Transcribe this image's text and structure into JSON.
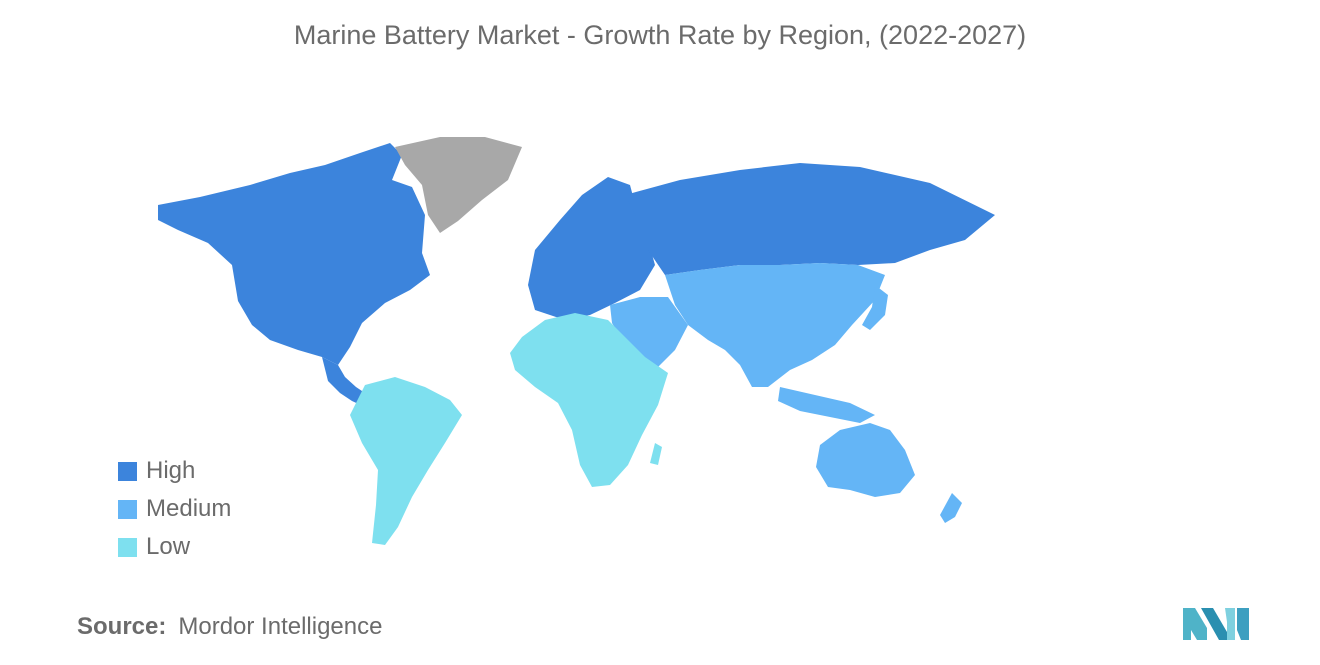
{
  "title": "Marine Battery Market - Growth Rate by Region, (2022-2027)",
  "legend": [
    {
      "label": "High",
      "color": "#3c84dc"
    },
    {
      "label": "Medium",
      "color": "#64b5f6"
    },
    {
      "label": "Low",
      "color": "#7ee0ef"
    }
  ],
  "no_data_color": "#a8a8a8",
  "regions": {
    "north_america": "High",
    "europe": "High",
    "russia": "High",
    "asia": "Medium",
    "middle_east": "Medium",
    "oceania": "Medium",
    "africa": "Low",
    "south_america": "Low",
    "greenland": "No data"
  },
  "source": {
    "key": "Source:",
    "value": "Mordor Intelligence"
  },
  "icons": {
    "logo": "mordor-intelligence-logo-icon"
  }
}
